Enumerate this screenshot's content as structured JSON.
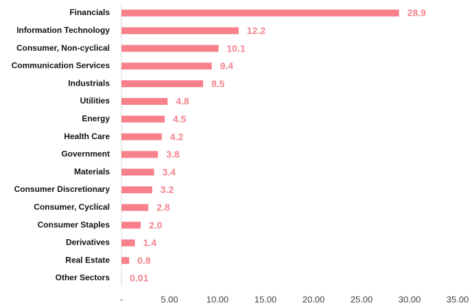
{
  "chart_data": {
    "type": "barh",
    "categories": [
      "Financials",
      "Information Technology",
      "Consumer, Non-cyclical",
      "Communication Services",
      "Industrials",
      "Utilities",
      "Energy",
      "Health Care",
      "Government",
      "Materials",
      "Consumer Discretionary",
      "Consumer, Cyclical",
      "Consumer Staples",
      "Derivatives",
      "Real Estate",
      "Other Sectors"
    ],
    "values": [
      28.9,
      12.2,
      10.1,
      9.4,
      8.5,
      4.8,
      4.5,
      4.2,
      3.8,
      3.4,
      3.2,
      2.8,
      2.0,
      1.4,
      0.8,
      0.01
    ],
    "value_labels": [
      "28.9",
      "12.2",
      "10.1",
      "9.4",
      "8.5",
      "4.8",
      "4.5",
      "4.2",
      "3.8",
      "3.4",
      "3.2",
      "2.8",
      "2.0",
      "1.4",
      "0.8",
      "0.01"
    ],
    "color": "#f7808b",
    "xlim": [
      0,
      35
    ],
    "xticks": [
      {
        "value": 0,
        "label": "-"
      },
      {
        "value": 5,
        "label": "5.00"
      },
      {
        "value": 10,
        "label": "10.00"
      },
      {
        "value": 15,
        "label": "15.00"
      },
      {
        "value": 20,
        "label": "20.00"
      },
      {
        "value": 25,
        "label": "25.00"
      },
      {
        "value": 30,
        "label": "30.00"
      },
      {
        "value": 35,
        "label": "35.00"
      }
    ],
    "grid": false
  }
}
